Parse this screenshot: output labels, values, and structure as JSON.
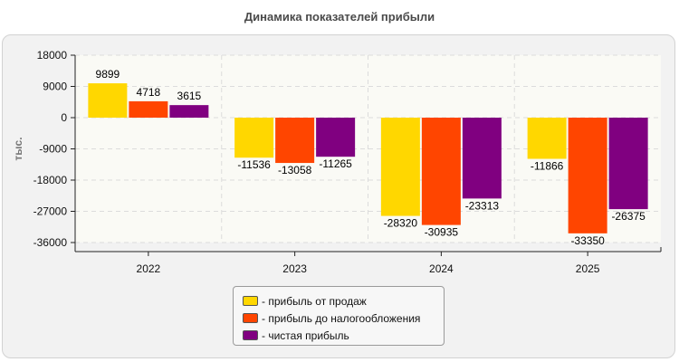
{
  "title": "Динамика показателей прибыли",
  "chart_data": {
    "type": "bar",
    "categories": [
      "2022",
      "2023",
      "2024",
      "2025"
    ],
    "series": [
      {
        "name": "прибыль от продаж",
        "color": "#ffd700",
        "values": [
          9899,
          -11536,
          -28320,
          -11866
        ]
      },
      {
        "name": "прибыль до налогообложения",
        "color": "#ff4500",
        "values": [
          4718,
          -13058,
          -30935,
          -33350
        ]
      },
      {
        "name": "чистая прибыль",
        "color": "#800080",
        "values": [
          3615,
          -11265,
          -23313,
          -26375
        ]
      }
    ],
    "ylabel": "тыс.",
    "ylim": [
      -36000,
      18000
    ],
    "yticks": [
      18000,
      9000,
      0,
      -9000,
      -18000,
      -27000,
      -36000
    ],
    "grid": true,
    "legend_position": "bottom"
  },
  "legend": {
    "items": [
      {
        "label": "- прибыль от продаж",
        "color": "#ffd700"
      },
      {
        "label": "- прибыль до налогообложения",
        "color": "#ff4500"
      },
      {
        "label": "- чистая прибыль",
        "color": "#800080"
      }
    ]
  }
}
